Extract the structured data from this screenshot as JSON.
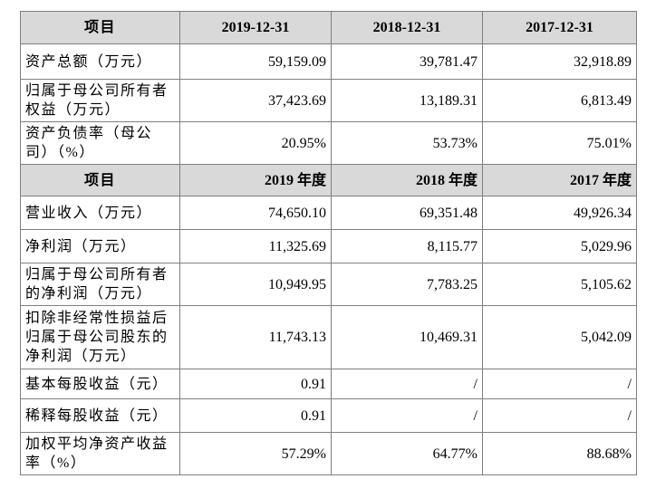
{
  "sections": [
    {
      "header": [
        "项目",
        "2019-12-31",
        "2018-12-31",
        "2017-12-31"
      ],
      "rows": [
        [
          "资产总额（万元）",
          "59,159.09",
          "39,781.47",
          "32,918.89"
        ],
        [
          "归属于母公司所有者权益（万元）",
          "37,423.69",
          "13,189.31",
          "6,813.49"
        ],
        [
          "资产负债率（母公司）（%）",
          "20.95%",
          "53.73%",
          "75.01%"
        ]
      ]
    },
    {
      "header": [
        "项目",
        "2019 年度",
        "2018 年度",
        "2017 年度"
      ],
      "rows": [
        [
          "营业收入（万元）",
          "74,650.10",
          "69,351.48",
          "49,926.34"
        ],
        [
          "净利润（万元）",
          "11,325.69",
          "8,115.77",
          "5,029.96"
        ],
        [
          "归属于母公司所有者的净利润（万元）",
          "10,949.95",
          "7,783.25",
          "5,105.62"
        ],
        [
          "扣除非经常性损益后归属于母公司股东的净利润（万元）",
          "11,743.13",
          "10,469.31",
          "5,042.09"
        ],
        [
          "基本每股收益（元）",
          "0.91",
          "/",
          "/"
        ],
        [
          "稀释每股收益（元）",
          "0.91",
          "/",
          "/"
        ],
        [
          "加权平均净资产收益率（%）",
          "57.29%",
          "64.77%",
          "88.68%"
        ]
      ]
    }
  ]
}
